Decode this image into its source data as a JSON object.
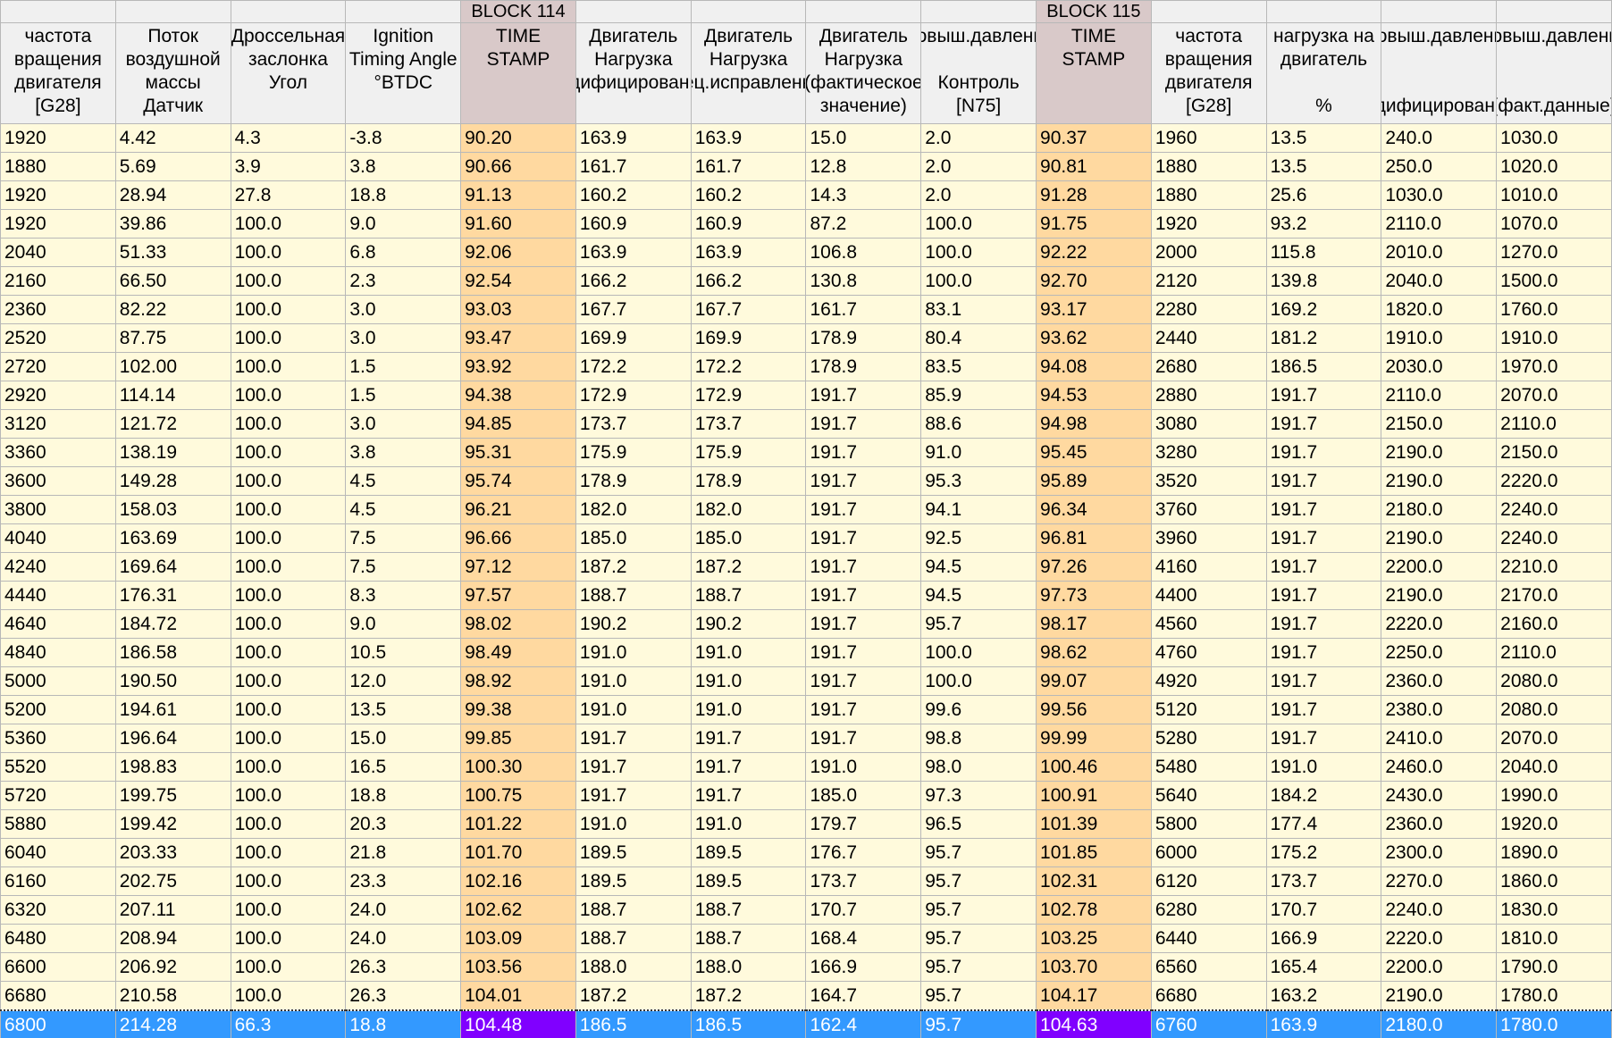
{
  "columns": [
    {
      "lines": [
        "частота",
        "вращения",
        "двигателя",
        "[G28]"
      ]
    },
    {
      "lines": [
        "Поток",
        "воздушной",
        "массы",
        "Датчик"
      ]
    },
    {
      "lines": [
        "Дроссельная",
        "заслонка",
        "Угол"
      ]
    },
    {
      "lines": [
        "Ignition",
        "Timing Angle",
        "°BTDC"
      ]
    },
    {
      "group": "BLOCK 114",
      "lines": [
        "TIME",
        "STAMP"
      ]
    },
    {
      "lines": [
        "Двигатель",
        "Нагрузка",
        "(модифицированная)"
      ]
    },
    {
      "lines": [
        "Двигатель",
        "Нагрузка",
        "(спец.исправленная)"
      ]
    },
    {
      "lines": [
        "Двигатель",
        "Нагрузка",
        "(фактическое",
        "значение)"
      ]
    },
    {
      "lines": [
        "Повыш.давление"
      ],
      "bottom": [
        "Контроль",
        "[N75]"
      ]
    },
    {
      "group": "BLOCK 115",
      "lines": [
        "TIME",
        "STAMP"
      ]
    },
    {
      "lines": [
        "частота",
        "вращения",
        "двигателя",
        "[G28]"
      ]
    },
    {
      "lines": [
        "нагрузка на",
        "двигатель"
      ],
      "bottom": [
        "%"
      ]
    },
    {
      "lines": [
        "Повыш.давление"
      ],
      "bottom": [
        "(модифицированная)"
      ]
    },
    {
      "lines": [
        "Повыш.давление"
      ],
      "bottom": [
        "(факт.данные)"
      ]
    }
  ],
  "rows": [
    [
      "1920",
      "4.42",
      "4.3",
      "-3.8",
      "90.20",
      "163.9",
      "163.9",
      "15.0",
      "2.0",
      "90.37",
      "1960",
      "13.5",
      "240.0",
      "1030.0"
    ],
    [
      "1880",
      "5.69",
      "3.9",
      "3.8",
      "90.66",
      "161.7",
      "161.7",
      "12.8",
      "2.0",
      "90.81",
      "1880",
      "13.5",
      "250.0",
      "1020.0"
    ],
    [
      "1920",
      "28.94",
      "27.8",
      "18.8",
      "91.13",
      "160.2",
      "160.2",
      "14.3",
      "2.0",
      "91.28",
      "1880",
      "25.6",
      "1030.0",
      "1010.0"
    ],
    [
      "1920",
      "39.86",
      "100.0",
      "9.0",
      "91.60",
      "160.9",
      "160.9",
      "87.2",
      "100.0",
      "91.75",
      "1920",
      "93.2",
      "2110.0",
      "1070.0"
    ],
    [
      "2040",
      "51.33",
      "100.0",
      "6.8",
      "92.06",
      "163.9",
      "163.9",
      "106.8",
      "100.0",
      "92.22",
      "2000",
      "115.8",
      "2010.0",
      "1270.0"
    ],
    [
      "2160",
      "66.50",
      "100.0",
      "2.3",
      "92.54",
      "166.2",
      "166.2",
      "130.8",
      "100.0",
      "92.70",
      "2120",
      "139.8",
      "2040.0",
      "1500.0"
    ],
    [
      "2360",
      "82.22",
      "100.0",
      "3.0",
      "93.03",
      "167.7",
      "167.7",
      "161.7",
      "83.1",
      "93.17",
      "2280",
      "169.2",
      "1820.0",
      "1760.0"
    ],
    [
      "2520",
      "87.75",
      "100.0",
      "3.0",
      "93.47",
      "169.9",
      "169.9",
      "178.9",
      "80.4",
      "93.62",
      "2440",
      "181.2",
      "1910.0",
      "1910.0"
    ],
    [
      "2720",
      "102.00",
      "100.0",
      "1.5",
      "93.92",
      "172.2",
      "172.2",
      "178.9",
      "83.5",
      "94.08",
      "2680",
      "186.5",
      "2030.0",
      "1970.0"
    ],
    [
      "2920",
      "114.14",
      "100.0",
      "1.5",
      "94.38",
      "172.9",
      "172.9",
      "191.7",
      "85.9",
      "94.53",
      "2880",
      "191.7",
      "2110.0",
      "2070.0"
    ],
    [
      "3120",
      "121.72",
      "100.0",
      "3.0",
      "94.85",
      "173.7",
      "173.7",
      "191.7",
      "88.6",
      "94.98",
      "3080",
      "191.7",
      "2150.0",
      "2110.0"
    ],
    [
      "3360",
      "138.19",
      "100.0",
      "3.8",
      "95.31",
      "175.9",
      "175.9",
      "191.7",
      "91.0",
      "95.45",
      "3280",
      "191.7",
      "2190.0",
      "2150.0"
    ],
    [
      "3600",
      "149.28",
      "100.0",
      "4.5",
      "95.74",
      "178.9",
      "178.9",
      "191.7",
      "95.3",
      "95.89",
      "3520",
      "191.7",
      "2190.0",
      "2220.0"
    ],
    [
      "3800",
      "158.03",
      "100.0",
      "4.5",
      "96.21",
      "182.0",
      "182.0",
      "191.7",
      "94.1",
      "96.34",
      "3760",
      "191.7",
      "2180.0",
      "2240.0"
    ],
    [
      "4040",
      "163.69",
      "100.0",
      "7.5",
      "96.66",
      "185.0",
      "185.0",
      "191.7",
      "92.5",
      "96.81",
      "3960",
      "191.7",
      "2190.0",
      "2240.0"
    ],
    [
      "4240",
      "169.64",
      "100.0",
      "7.5",
      "97.12",
      "187.2",
      "187.2",
      "191.7",
      "94.5",
      "97.26",
      "4160",
      "191.7",
      "2200.0",
      "2210.0"
    ],
    [
      "4440",
      "176.31",
      "100.0",
      "8.3",
      "97.57",
      "188.7",
      "188.7",
      "191.7",
      "94.5",
      "97.73",
      "4400",
      "191.7",
      "2190.0",
      "2170.0"
    ],
    [
      "4640",
      "184.72",
      "100.0",
      "9.0",
      "98.02",
      "190.2",
      "190.2",
      "191.7",
      "95.7",
      "98.17",
      "4560",
      "191.7",
      "2220.0",
      "2160.0"
    ],
    [
      "4840",
      "186.58",
      "100.0",
      "10.5",
      "98.49",
      "191.0",
      "191.0",
      "191.7",
      "100.0",
      "98.62",
      "4760",
      "191.7",
      "2250.0",
      "2110.0"
    ],
    [
      "5000",
      "190.50",
      "100.0",
      "12.0",
      "98.92",
      "191.0",
      "191.0",
      "191.7",
      "100.0",
      "99.07",
      "4920",
      "191.7",
      "2360.0",
      "2080.0"
    ],
    [
      "5200",
      "194.61",
      "100.0",
      "13.5",
      "99.38",
      "191.0",
      "191.0",
      "191.7",
      "99.6",
      "99.56",
      "5120",
      "191.7",
      "2380.0",
      "2080.0"
    ],
    [
      "5360",
      "196.64",
      "100.0",
      "15.0",
      "99.85",
      "191.7",
      "191.7",
      "191.7",
      "98.8",
      "99.99",
      "5280",
      "191.7",
      "2410.0",
      "2070.0"
    ],
    [
      "5520",
      "198.83",
      "100.0",
      "16.5",
      "100.30",
      "191.7",
      "191.7",
      "191.0",
      "98.0",
      "100.46",
      "5480",
      "191.0",
      "2460.0",
      "2040.0"
    ],
    [
      "5720",
      "199.75",
      "100.0",
      "18.8",
      "100.75",
      "191.7",
      "191.7",
      "185.0",
      "97.3",
      "100.91",
      "5640",
      "184.2",
      "2430.0",
      "1990.0"
    ],
    [
      "5880",
      "199.42",
      "100.0",
      "20.3",
      "101.22",
      "191.0",
      "191.0",
      "179.7",
      "96.5",
      "101.39",
      "5800",
      "177.4",
      "2360.0",
      "1920.0"
    ],
    [
      "6040",
      "203.33",
      "100.0",
      "21.8",
      "101.70",
      "189.5",
      "189.5",
      "176.7",
      "95.7",
      "101.85",
      "6000",
      "175.2",
      "2300.0",
      "1890.0"
    ],
    [
      "6160",
      "202.75",
      "100.0",
      "23.3",
      "102.16",
      "189.5",
      "189.5",
      "173.7",
      "95.7",
      "102.31",
      "6120",
      "173.7",
      "2270.0",
      "1860.0"
    ],
    [
      "6320",
      "207.11",
      "100.0",
      "24.0",
      "102.62",
      "188.7",
      "188.7",
      "170.7",
      "95.7",
      "102.78",
      "6280",
      "170.7",
      "2240.0",
      "1830.0"
    ],
    [
      "6480",
      "208.94",
      "100.0",
      "24.0",
      "103.09",
      "188.7",
      "188.7",
      "168.4",
      "95.7",
      "103.25",
      "6440",
      "166.9",
      "2220.0",
      "1810.0"
    ],
    [
      "6600",
      "206.92",
      "100.0",
      "26.3",
      "103.56",
      "188.0",
      "188.0",
      "166.9",
      "95.7",
      "103.70",
      "6560",
      "165.4",
      "2200.0",
      "1790.0"
    ],
    [
      "6680",
      "210.58",
      "100.0",
      "26.3",
      "104.01",
      "187.2",
      "187.2",
      "164.7",
      "95.7",
      "104.17",
      "6680",
      "163.2",
      "2190.0",
      "1780.0"
    ],
    [
      "6800",
      "214.28",
      "66.3",
      "18.8",
      "104.48",
      "186.5",
      "186.5",
      "162.4",
      "95.7",
      "104.63",
      "6760",
      "163.9",
      "2180.0",
      "1780.0"
    ]
  ]
}
